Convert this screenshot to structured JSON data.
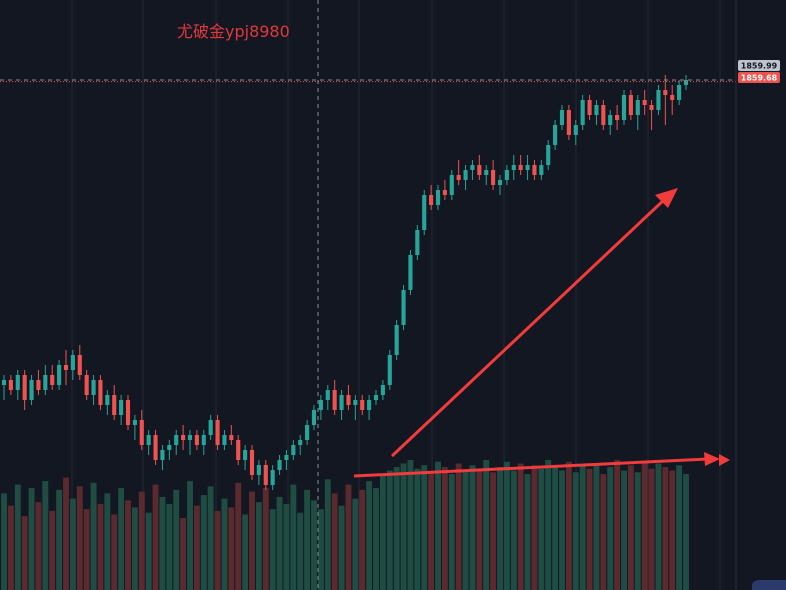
{
  "watermark": {
    "text": "尤破金ypj8980",
    "color": "#e0383b"
  },
  "colors": {
    "background": "#131722",
    "grid": "#242a36",
    "up": "#26a69a",
    "down": "#ef5350",
    "volume_up": "#1f4d43",
    "volume_down": "#5a2a2e",
    "arrow": "#f23b3b",
    "crosshair": "#8a8f99",
    "last_price_line": "#ef5350",
    "price_tag_gray": "#bfc3cc",
    "price_tag_red": "#ef5350"
  },
  "price_axis": {
    "crosshair_price": "1859.99",
    "last_price": "1859.68"
  },
  "chart_data": {
    "type": "candlestick",
    "title": "",
    "ylim": [
      1770,
      1864
    ],
    "crosshair_price": 1859.99,
    "last_price": 1859.68,
    "grid": true,
    "annotations": [
      "two red arrows pointing up-right"
    ],
    "candles": [
      [
        1799,
        1801,
        1796,
        1800
      ],
      [
        1800,
        1801,
        1797,
        1798
      ],
      [
        1798,
        1802,
        1796,
        1801
      ],
      [
        1801,
        1802,
        1794,
        1796
      ],
      [
        1796,
        1801,
        1795,
        1800
      ],
      [
        1800,
        1802,
        1797,
        1798
      ],
      [
        1798,
        1803,
        1797,
        1801
      ],
      [
        1801,
        1803,
        1798,
        1799
      ],
      [
        1799,
        1804,
        1798,
        1803
      ],
      [
        1803,
        1806,
        1799,
        1802
      ],
      [
        1802,
        1806,
        1800,
        1805
      ],
      [
        1805,
        1807,
        1800,
        1801
      ],
      [
        1801,
        1802,
        1796,
        1797
      ],
      [
        1797,
        1801,
        1795,
        1800
      ],
      [
        1800,
        1801,
        1794,
        1795
      ],
      [
        1795,
        1798,
        1793,
        1797
      ],
      [
        1797,
        1799,
        1792,
        1793
      ],
      [
        1793,
        1797,
        1791,
        1796
      ],
      [
        1796,
        1797,
        1790,
        1791
      ],
      [
        1791,
        1793,
        1788,
        1792
      ],
      [
        1792,
        1794,
        1786,
        1787
      ],
      [
        1787,
        1790,
        1785,
        1789
      ],
      [
        1789,
        1790,
        1783,
        1784
      ],
      [
        1784,
        1787,
        1782,
        1786
      ],
      [
        1786,
        1788,
        1784,
        1787
      ],
      [
        1787,
        1790,
        1785,
        1789
      ],
      [
        1789,
        1791,
        1786,
        1788
      ],
      [
        1788,
        1790,
        1785,
        1789
      ],
      [
        1789,
        1790,
        1786,
        1787
      ],
      [
        1787,
        1790,
        1785,
        1789
      ],
      [
        1789,
        1793,
        1788,
        1792
      ],
      [
        1792,
        1793,
        1786,
        1787
      ],
      [
        1787,
        1790,
        1786,
        1789
      ],
      [
        1789,
        1791,
        1787,
        1788
      ],
      [
        1788,
        1789,
        1783,
        1784
      ],
      [
        1784,
        1787,
        1782,
        1786
      ],
      [
        1786,
        1787,
        1780,
        1781
      ],
      [
        1781,
        1784,
        1779,
        1783
      ],
      [
        1783,
        1784,
        1778,
        1779
      ],
      [
        1779,
        1783,
        1778,
        1782
      ],
      [
        1782,
        1785,
        1781,
        1784
      ],
      [
        1784,
        1786,
        1782,
        1785
      ],
      [
        1785,
        1788,
        1784,
        1787
      ],
      [
        1787,
        1789,
        1785,
        1788
      ],
      [
        1788,
        1792,
        1787,
        1791
      ],
      [
        1791,
        1795,
        1790,
        1794
      ],
      [
        1794,
        1797,
        1792,
        1796
      ],
      [
        1796,
        1799,
        1794,
        1798
      ],
      [
        1798,
        1800,
        1793,
        1794
      ],
      [
        1794,
        1798,
        1792,
        1797
      ],
      [
        1797,
        1799,
        1794,
        1795
      ],
      [
        1795,
        1797,
        1792,
        1796
      ],
      [
        1796,
        1797,
        1793,
        1794
      ],
      [
        1794,
        1797,
        1792,
        1796
      ],
      [
        1796,
        1798,
        1795,
        1797
      ],
      [
        1797,
        1800,
        1796,
        1799
      ],
      [
        1799,
        1806,
        1798,
        1805
      ],
      [
        1805,
        1812,
        1804,
        1811
      ],
      [
        1811,
        1819,
        1810,
        1818
      ],
      [
        1818,
        1826,
        1817,
        1825
      ],
      [
        1825,
        1831,
        1824,
        1830
      ],
      [
        1830,
        1838,
        1829,
        1837
      ],
      [
        1837,
        1839,
        1834,
        1835
      ],
      [
        1835,
        1839,
        1834,
        1838
      ],
      [
        1838,
        1840,
        1836,
        1837
      ],
      [
        1837,
        1842,
        1836,
        1841
      ],
      [
        1841,
        1844,
        1839,
        1840
      ],
      [
        1840,
        1843,
        1838,
        1842
      ],
      [
        1842,
        1844,
        1840,
        1843
      ],
      [
        1843,
        1845,
        1840,
        1841
      ],
      [
        1841,
        1843,
        1839,
        1842
      ],
      [
        1842,
        1844,
        1838,
        1839
      ],
      [
        1839,
        1841,
        1837,
        1840
      ],
      [
        1840,
        1843,
        1839,
        1842
      ],
      [
        1842,
        1845,
        1840,
        1843
      ],
      [
        1843,
        1845,
        1841,
        1842
      ],
      [
        1842,
        1845,
        1840,
        1843
      ],
      [
        1843,
        1844,
        1840,
        1841
      ],
      [
        1841,
        1844,
        1840,
        1843
      ],
      [
        1843,
        1848,
        1842,
        1847
      ],
      [
        1847,
        1852,
        1846,
        1851
      ],
      [
        1851,
        1855,
        1850,
        1854
      ],
      [
        1854,
        1855,
        1848,
        1849
      ],
      [
        1849,
        1852,
        1847,
        1851
      ],
      [
        1851,
        1857,
        1850,
        1856
      ],
      [
        1856,
        1857,
        1852,
        1853
      ],
      [
        1853,
        1856,
        1851,
        1855
      ],
      [
        1855,
        1856,
        1850,
        1851
      ],
      [
        1851,
        1854,
        1849,
        1853
      ],
      [
        1853,
        1855,
        1850,
        1852
      ],
      [
        1852,
        1858,
        1851,
        1857
      ],
      [
        1857,
        1858,
        1852,
        1853
      ],
      [
        1853,
        1857,
        1850,
        1856
      ],
      [
        1856,
        1858,
        1853,
        1855
      ],
      [
        1855,
        1856,
        1850,
        1854
      ],
      [
        1854,
        1859,
        1853,
        1858
      ],
      [
        1858,
        1861,
        1851,
        1857
      ],
      [
        1857,
        1859,
        1853,
        1856
      ],
      [
        1856,
        1860,
        1855,
        1859
      ],
      [
        1859,
        1861,
        1858,
        1860
      ]
    ],
    "volume": [
      55,
      48,
      60,
      42,
      58,
      50,
      62,
      45,
      57,
      64,
      52,
      59,
      46,
      61,
      49,
      55,
      43,
      58,
      51,
      47,
      56,
      44,
      60,
      53,
      49,
      57,
      41,
      62,
      48,
      54,
      59,
      45,
      52,
      47,
      61,
      43,
      56,
      50,
      58,
      46,
      53,
      49,
      60,
      44,
      57,
      51,
      46,
      63,
      55,
      48,
      60,
      52,
      57,
      62,
      58,
      65,
      68,
      70,
      72,
      74,
      69,
      71,
      67,
      73,
      70,
      66,
      72,
      68,
      71,
      69,
      74,
      67,
      70,
      73,
      68,
      72,
      66,
      71,
      69,
      74,
      70,
      68,
      73,
      67,
      71,
      69,
      72,
      66,
      70,
      74,
      68,
      71,
      67,
      73,
      69,
      72,
      70,
      68,
      71,
      66
    ]
  }
}
